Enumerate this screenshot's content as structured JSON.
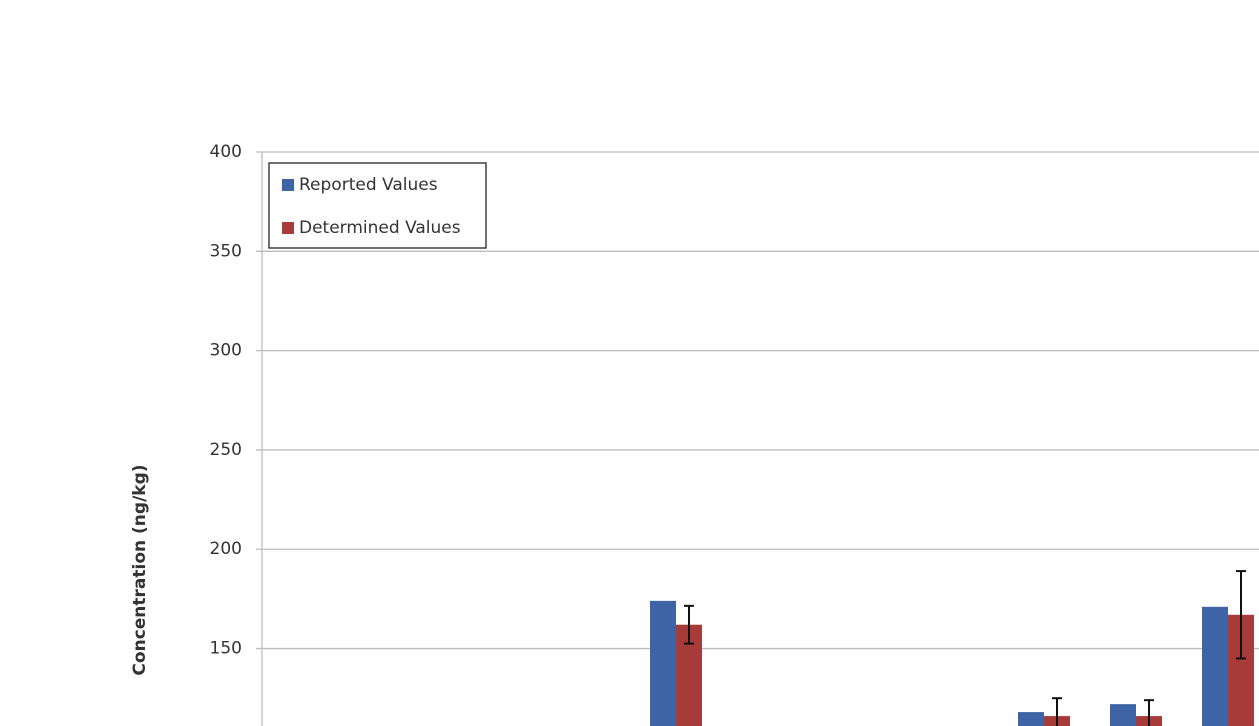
{
  "chart_data": {
    "type": "bar",
    "y_label": "Concentration (ng/kg)",
    "categories": [
      null,
      null,
      null,
      null,
      null,
      null,
      null,
      null,
      null,
      null,
      null
    ],
    "series": [
      {
        "name": "Reported Values",
        "color": "#3e64a5",
        "values": [
          null,
          null,
          null,
          null,
          174,
          null,
          null,
          null,
          118,
          122,
          171
        ]
      },
      {
        "name": "Determined Values",
        "color": "#a63b39",
        "values": [
          null,
          null,
          null,
          null,
          162,
          null,
          null,
          null,
          116,
          116,
          167
        ],
        "errors": [
          null,
          null,
          null,
          null,
          9.5,
          null,
          null,
          null,
          9,
          8,
          22
        ]
      }
    ],
    "ylim": [
      111,
      400
    ],
    "yticks": [
      150,
      200,
      250,
      300,
      350,
      400
    ],
    "grid": true,
    "legend": "top-left"
  }
}
